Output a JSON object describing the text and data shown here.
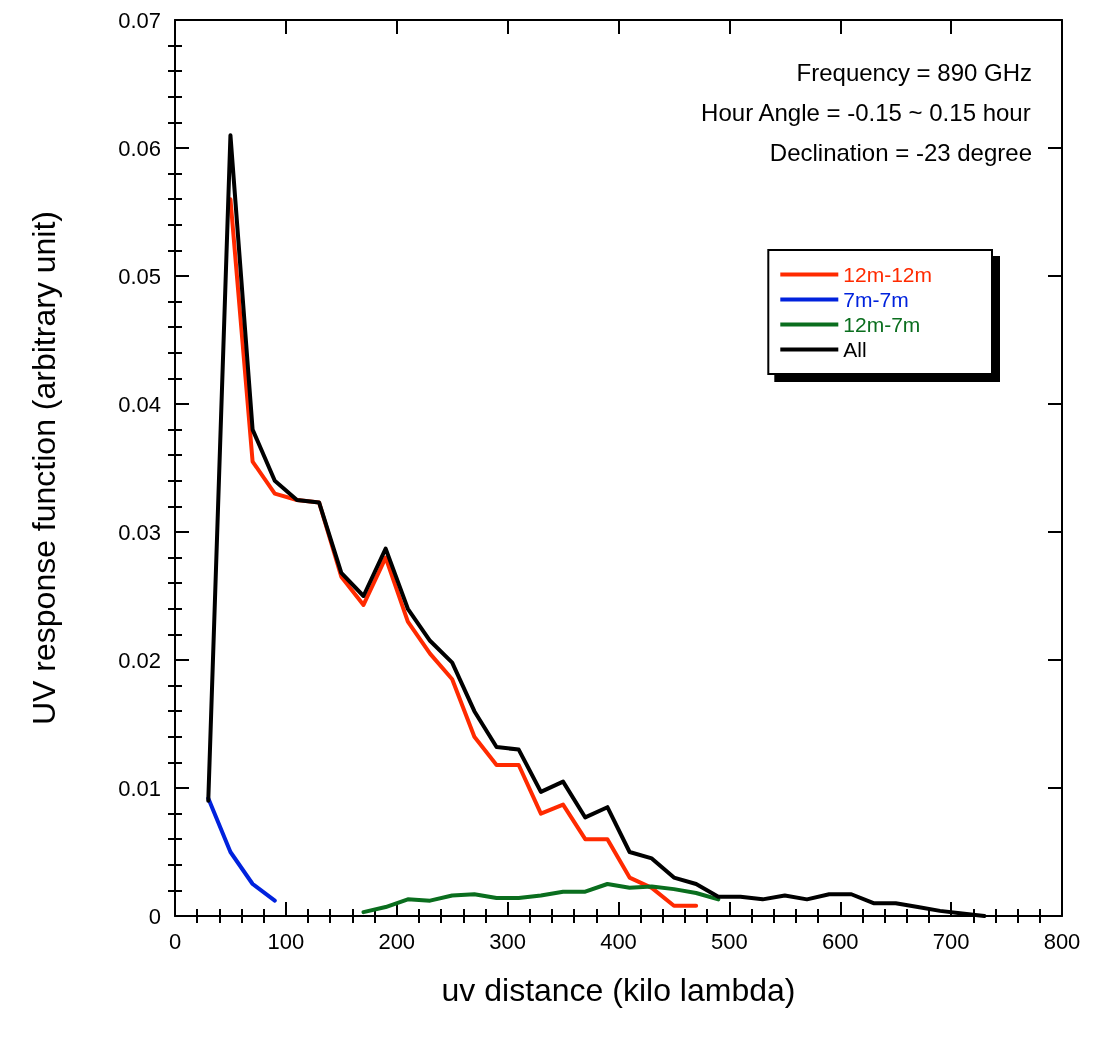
{
  "chart_data": {
    "type": "line",
    "xlabel": "uv distance (kilo lambda)",
    "ylabel": "UV response function (arbitrary unit)",
    "annotations": [
      "Frequency = 890 GHz",
      "Hour Angle = -0.15 ~ 0.15 hour",
      "Declination = -23 degree"
    ],
    "xlim": [
      0,
      800
    ],
    "xticks": [
      0,
      100,
      200,
      300,
      400,
      500,
      600,
      700,
      800
    ],
    "ylim": [
      0,
      0.07
    ],
    "yticks": [
      0,
      0.01,
      0.02,
      0.03,
      0.04,
      0.05,
      0.06,
      0.07
    ],
    "grid": false,
    "legend": "top right",
    "marker": "none",
    "line_style": "solid",
    "series": [
      {
        "name": "12m-12m",
        "color": "#ff2a00",
        "x": [
          50,
          70,
          90,
          110,
          130,
          150,
          170,
          190,
          210,
          230,
          250,
          270,
          290,
          310,
          330,
          350,
          370,
          390,
          410,
          430,
          450,
          470
        ],
        "values": [
          0.056,
          0.0355,
          0.033,
          0.0325,
          0.0323,
          0.0265,
          0.0243,
          0.028,
          0.023,
          0.0205,
          0.0185,
          0.014,
          0.0118,
          0.0118,
          0.008,
          0.0087,
          0.006,
          0.006,
          0.003,
          0.0022,
          0.0008,
          0.0008
        ]
      },
      {
        "name": "7m-7m",
        "color": "#0022dd",
        "x": [
          30,
          50,
          70,
          90
        ],
        "values": [
          0.0092,
          0.005,
          0.0025,
          0.0012
        ]
      },
      {
        "name": "12m-7m",
        "color": "#0a6e1e",
        "x": [
          170,
          190,
          210,
          230,
          250,
          270,
          290,
          310,
          330,
          350,
          370,
          390,
          410,
          430,
          450,
          470,
          490
        ],
        "values": [
          0.0003,
          0.0007,
          0.0013,
          0.0012,
          0.0016,
          0.0017,
          0.0014,
          0.0014,
          0.0016,
          0.0019,
          0.0019,
          0.0025,
          0.0022,
          0.0023,
          0.0021,
          0.0018,
          0.0013
        ]
      },
      {
        "name": "All",
        "color": "#000000",
        "x": [
          30,
          50,
          70,
          90,
          110,
          130,
          150,
          170,
          190,
          210,
          230,
          250,
          270,
          290,
          310,
          330,
          350,
          370,
          390,
          410,
          430,
          450,
          470,
          490,
          510,
          530,
          550,
          570,
          590,
          610,
          630,
          650,
          670,
          690,
          710,
          730
        ],
        "values": [
          0.009,
          0.061,
          0.038,
          0.034,
          0.0325,
          0.0323,
          0.0268,
          0.025,
          0.0287,
          0.024,
          0.0215,
          0.0198,
          0.016,
          0.0132,
          0.013,
          0.0097,
          0.0105,
          0.0077,
          0.0085,
          0.005,
          0.0045,
          0.003,
          0.0025,
          0.0015,
          0.0015,
          0.0013,
          0.0016,
          0.0013,
          0.0017,
          0.0017,
          0.001,
          0.001,
          0.0007,
          0.0004,
          0.0002,
          0
        ]
      }
    ]
  }
}
